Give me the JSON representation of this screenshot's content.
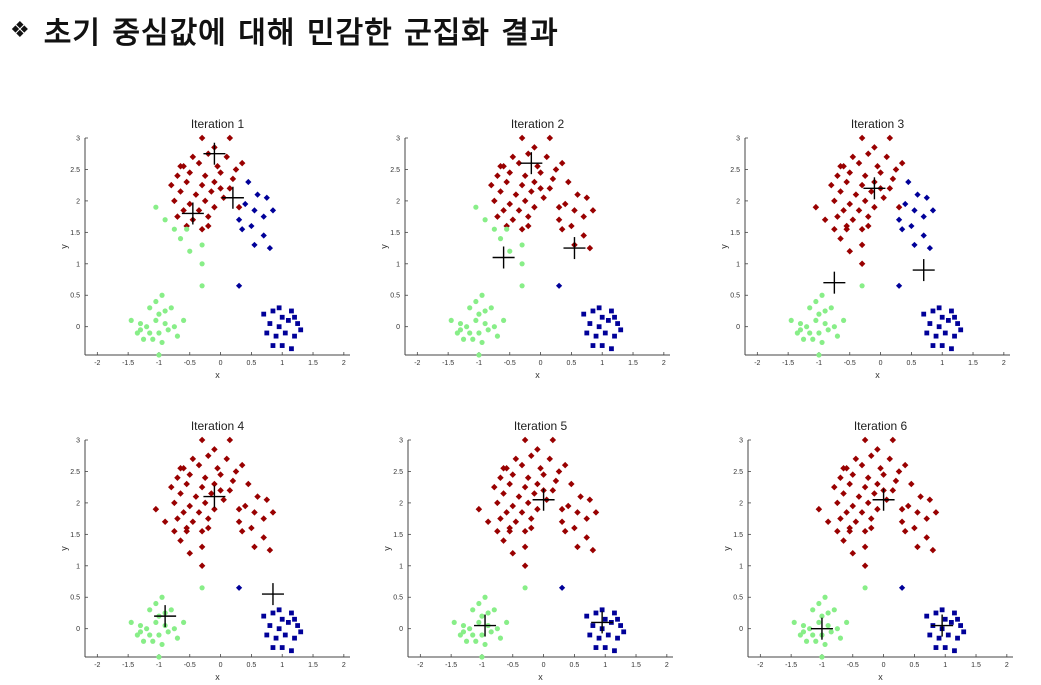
{
  "heading": {
    "bullet": "❖",
    "text": "초기 중심값에 대해 민감한 군집화 결과"
  },
  "colors": {
    "cluster_top": "#990000",
    "cluster_right": "#000099",
    "cluster_left": "#88ee88",
    "centroid": "#000000"
  },
  "axis_common": {
    "xlabel": "x",
    "ylabel": "y",
    "xlim": [
      -2.2,
      2.1
    ],
    "ylim": [
      -0.45,
      3.0
    ],
    "xticks": [
      -2,
      -1.5,
      -1,
      -0.5,
      0,
      0.5,
      1,
      1.5,
      2
    ],
    "xtick_labels": [
      "-2",
      "-1.5",
      "-1",
      "-0.5",
      "0",
      "0.5",
      "1",
      "1.5",
      "2"
    ],
    "yticks": [
      0,
      0.5,
      1,
      1.5,
      2,
      2.5,
      3
    ],
    "ytick_labels": [
      "0",
      "0.5",
      "1",
      "1.5",
      "2",
      "2.5",
      "3"
    ]
  },
  "chart_data": [
    {
      "type": "scatter",
      "title": "Iteration 1",
      "centroids": [
        [
          -0.1,
          2.75
        ],
        [
          0.2,
          2.05
        ],
        [
          -0.45,
          1.8
        ]
      ],
      "assign": {
        "top": [
          "top_core"
        ],
        "right": [
          "mid_right",
          "right_cluster",
          "lone_right"
        ],
        "left": [
          "mid_left",
          "left_cluster",
          "lone_left"
        ]
      }
    },
    {
      "type": "scatter",
      "title": "Iteration 2",
      "centroids": [
        [
          -0.15,
          2.6
        ],
        [
          0.55,
          1.25
        ],
        [
          -0.6,
          1.1
        ]
      ],
      "assign": {
        "top": [
          "top_core",
          "mid_right"
        ],
        "right": [
          "right_cluster",
          "lone_right"
        ],
        "left": [
          "mid_left",
          "left_cluster",
          "lone_left"
        ]
      }
    },
    {
      "type": "scatter",
      "title": "Iteration 3",
      "centroids": [
        [
          -0.1,
          2.2
        ],
        [
          0.7,
          0.9
        ],
        [
          -0.75,
          0.7
        ]
      ],
      "assign": {
        "top": [
          "top_core",
          "mid_left"
        ],
        "right": [
          "mid_right",
          "right_cluster",
          "lone_right"
        ],
        "left": [
          "left_cluster",
          "lone_left"
        ]
      }
    },
    {
      "type": "scatter",
      "title": "Iteration 4",
      "centroids": [
        [
          -0.1,
          2.1
        ],
        [
          0.85,
          0.55
        ],
        [
          -0.9,
          0.2
        ]
      ],
      "assign": {
        "top": [
          "top_core",
          "mid_left",
          "mid_right"
        ],
        "right": [
          "right_cluster",
          "lone_right"
        ],
        "left": [
          "left_cluster",
          "lone_left"
        ]
      }
    },
    {
      "type": "scatter",
      "title": "Iteration 5",
      "centroids": [
        [
          0.0,
          2.05
        ],
        [
          0.95,
          0.1
        ],
        [
          -0.95,
          0.05
        ]
      ],
      "assign": {
        "top": [
          "top_core",
          "mid_left",
          "mid_right"
        ],
        "right": [
          "right_cluster",
          "lone_right"
        ],
        "left": [
          "left_cluster",
          "lone_left"
        ]
      }
    },
    {
      "type": "scatter",
      "title": "Iteration 6",
      "centroids": [
        [
          0.0,
          2.05
        ],
        [
          0.95,
          0.05
        ],
        [
          -1.0,
          0.0
        ]
      ],
      "assign": {
        "top": [
          "top_core",
          "mid_left",
          "mid_right"
        ],
        "right": [
          "right_cluster",
          "lone_right"
        ],
        "left": [
          "left_cluster",
          "lone_left"
        ]
      }
    }
  ],
  "points": {
    "top_core": [
      [
        -0.3,
        3.0
      ],
      [
        0.15,
        3.0
      ],
      [
        -0.1,
        2.85
      ],
      [
        -0.45,
        2.7
      ],
      [
        -0.2,
        2.75
      ],
      [
        0.1,
        2.7
      ],
      [
        0.35,
        2.6
      ],
      [
        -0.6,
        2.55
      ],
      [
        -0.35,
        2.6
      ],
      [
        -0.05,
        2.55
      ],
      [
        0.25,
        2.5
      ],
      [
        -0.7,
        2.4
      ],
      [
        -0.5,
        2.45
      ],
      [
        -0.25,
        2.4
      ],
      [
        0.0,
        2.45
      ],
      [
        0.2,
        2.35
      ],
      [
        -0.8,
        2.25
      ],
      [
        -0.55,
        2.3
      ],
      [
        -0.3,
        2.25
      ],
      [
        -0.1,
        2.3
      ],
      [
        0.15,
        2.2
      ],
      [
        -0.65,
        2.15
      ],
      [
        -0.4,
        2.1
      ],
      [
        -0.15,
        2.15
      ],
      [
        0.05,
        2.05
      ],
      [
        -0.75,
        2.0
      ],
      [
        -0.5,
        1.95
      ],
      [
        -0.25,
        2.0
      ],
      [
        -0.6,
        1.85
      ],
      [
        -0.35,
        1.85
      ],
      [
        -0.45,
        1.7
      ],
      [
        -0.2,
        1.75
      ],
      [
        -0.1,
        1.9
      ],
      [
        -0.7,
        1.75
      ],
      [
        0.3,
        1.9
      ],
      [
        -0.55,
        1.6
      ],
      [
        -0.3,
        1.55
      ],
      [
        -0.65,
        2.55
      ],
      [
        0.0,
        2.2
      ],
      [
        -0.2,
        1.6
      ]
    ],
    "mid_left": [
      [
        -1.05,
        1.9
      ],
      [
        -0.65,
        1.4
      ],
      [
        -0.3,
        1.3
      ],
      [
        -0.5,
        1.2
      ],
      [
        -0.3,
        1.0
      ],
      [
        -0.55,
        1.55
      ],
      [
        -0.9,
        1.7
      ],
      [
        -0.75,
        1.55
      ]
    ],
    "mid_right": [
      [
        0.4,
        1.95
      ],
      [
        0.55,
        1.85
      ],
      [
        0.7,
        1.75
      ],
      [
        0.85,
        1.85
      ],
      [
        0.5,
        1.6
      ],
      [
        0.7,
        1.45
      ],
      [
        0.55,
        1.3
      ],
      [
        0.35,
        1.55
      ],
      [
        0.8,
        1.25
      ],
      [
        0.3,
        1.7
      ],
      [
        0.6,
        2.1
      ],
      [
        0.45,
        2.3
      ],
      [
        0.75,
        2.05
      ]
    ],
    "lone_right": [
      [
        0.3,
        0.65
      ]
    ],
    "right_cluster": [
      [
        0.7,
        0.2
      ],
      [
        0.85,
        0.25
      ],
      [
        1.0,
        0.15
      ],
      [
        1.15,
        0.25
      ],
      [
        0.8,
        0.05
      ],
      [
        0.95,
        0.0
      ],
      [
        1.1,
        0.1
      ],
      [
        1.25,
        0.05
      ],
      [
        0.75,
        -0.1
      ],
      [
        0.9,
        -0.15
      ],
      [
        1.05,
        -0.1
      ],
      [
        1.2,
        -0.15
      ],
      [
        1.0,
        -0.3
      ],
      [
        1.15,
        -0.35
      ],
      [
        0.85,
        -0.3
      ],
      [
        1.2,
        0.15
      ],
      [
        0.95,
        0.3
      ],
      [
        1.3,
        -0.05
      ]
    ],
    "lone_left": [
      [
        -0.3,
        0.65
      ]
    ],
    "left_cluster": [
      [
        -1.45,
        0.1
      ],
      [
        -1.3,
        0.05
      ],
      [
        -1.2,
        0.0
      ],
      [
        -1.05,
        0.1
      ],
      [
        -0.9,
        0.05
      ],
      [
        -0.75,
        0.0
      ],
      [
        -1.35,
        -0.1
      ],
      [
        -1.15,
        -0.1
      ],
      [
        -1.0,
        -0.1
      ],
      [
        -0.85,
        -0.05
      ],
      [
        -1.25,
        -0.2
      ],
      [
        -1.1,
        -0.2
      ],
      [
        -0.95,
        -0.25
      ],
      [
        -1.0,
        0.2
      ],
      [
        -0.9,
        0.25
      ],
      [
        -1.15,
        0.3
      ],
      [
        -1.05,
        0.4
      ],
      [
        -0.8,
        0.3
      ],
      [
        -0.95,
        0.5
      ],
      [
        -1.3,
        -0.05
      ],
      [
        -1.0,
        -0.45
      ],
      [
        -0.6,
        0.1
      ],
      [
        -0.7,
        -0.15
      ]
    ]
  }
}
